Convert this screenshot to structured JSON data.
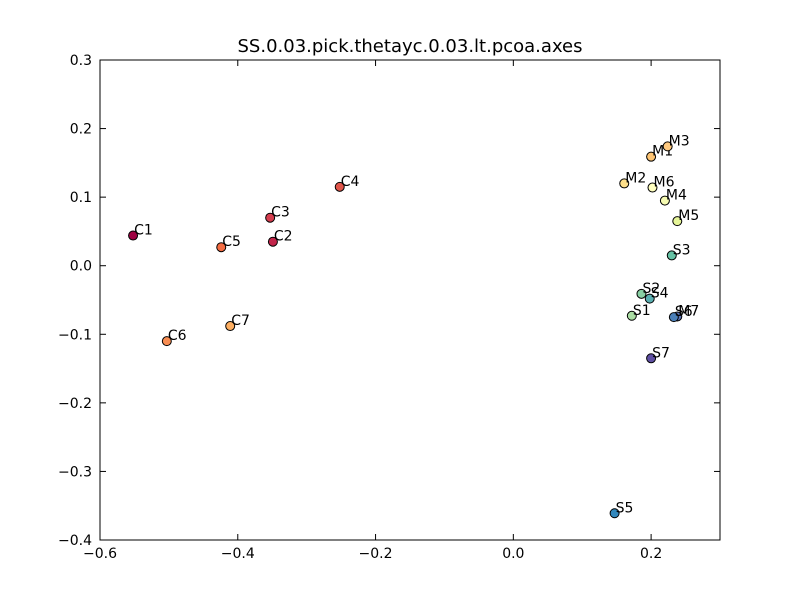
{
  "chart_data": {
    "type": "scatter",
    "title": "SS.0.03.pick.thetayc.0.03.lt.pcoa.axes",
    "xlabel": "",
    "ylabel": "",
    "xlim": [
      -0.6,
      0.3
    ],
    "ylim": [
      -0.4,
      0.3
    ],
    "xticks": [
      -0.6,
      -0.4,
      -0.2,
      0.0,
      0.2
    ],
    "xtick_labels": [
      "−0.6",
      "−0.4",
      "−0.2",
      "0.0",
      "0.2"
    ],
    "yticks": [
      -0.4,
      -0.3,
      -0.2,
      -0.1,
      0.0,
      0.1,
      0.2,
      0.3
    ],
    "ytick_labels": [
      "−0.4",
      "−0.3",
      "−0.2",
      "−0.1",
      "0.0",
      "0.1",
      "0.2",
      "0.3"
    ],
    "grid": false,
    "points": [
      {
        "label": "C1",
        "x": -0.552,
        "y": 0.044,
        "color": "#9e0142"
      },
      {
        "label": "C2",
        "x": -0.349,
        "y": 0.035,
        "color": "#c2254a"
      },
      {
        "label": "C3",
        "x": -0.353,
        "y": 0.07,
        "color": "#d53e4f"
      },
      {
        "label": "C4",
        "x": -0.252,
        "y": 0.115,
        "color": "#e0554a"
      },
      {
        "label": "C5",
        "x": -0.424,
        "y": 0.027,
        "color": "#f46d43"
      },
      {
        "label": "C6",
        "x": -0.503,
        "y": -0.11,
        "color": "#f88d52"
      },
      {
        "label": "C7",
        "x": -0.411,
        "y": -0.088,
        "color": "#fdae61"
      },
      {
        "label": "M1",
        "x": 0.2,
        "y": 0.159,
        "color": "#fdc473"
      },
      {
        "label": "M2",
        "x": 0.161,
        "y": 0.12,
        "color": "#fee08b"
      },
      {
        "label": "M3",
        "x": 0.224,
        "y": 0.174,
        "color": "#fec980"
      },
      {
        "label": "M4",
        "x": 0.22,
        "y": 0.095,
        "color": "#f6fbb2"
      },
      {
        "label": "M5",
        "x": 0.238,
        "y": 0.065,
        "color": "#e6f598"
      },
      {
        "label": "M6",
        "x": 0.202,
        "y": 0.114,
        "color": "#ffffbf"
      },
      {
        "label": "M7",
        "x": 0.238,
        "y": -0.074,
        "color": "#5e76b8"
      },
      {
        "label": "S1",
        "x": 0.172,
        "y": -0.073,
        "color": "#abdda4"
      },
      {
        "label": "S2",
        "x": 0.186,
        "y": -0.041,
        "color": "#89d0a4"
      },
      {
        "label": "S3",
        "x": 0.23,
        "y": 0.015,
        "color": "#66c2a5"
      },
      {
        "label": "S4",
        "x": 0.198,
        "y": -0.048,
        "color": "#5aaeb0"
      },
      {
        "label": "S5",
        "x": 0.147,
        "y": -0.361,
        "color": "#3288bd"
      },
      {
        "label": "S6",
        "x": 0.233,
        "y": -0.075,
        "color": "#4a7fb8"
      },
      {
        "label": "S7",
        "x": 0.2,
        "y": -0.135,
        "color": "#5e4fa2"
      }
    ]
  }
}
